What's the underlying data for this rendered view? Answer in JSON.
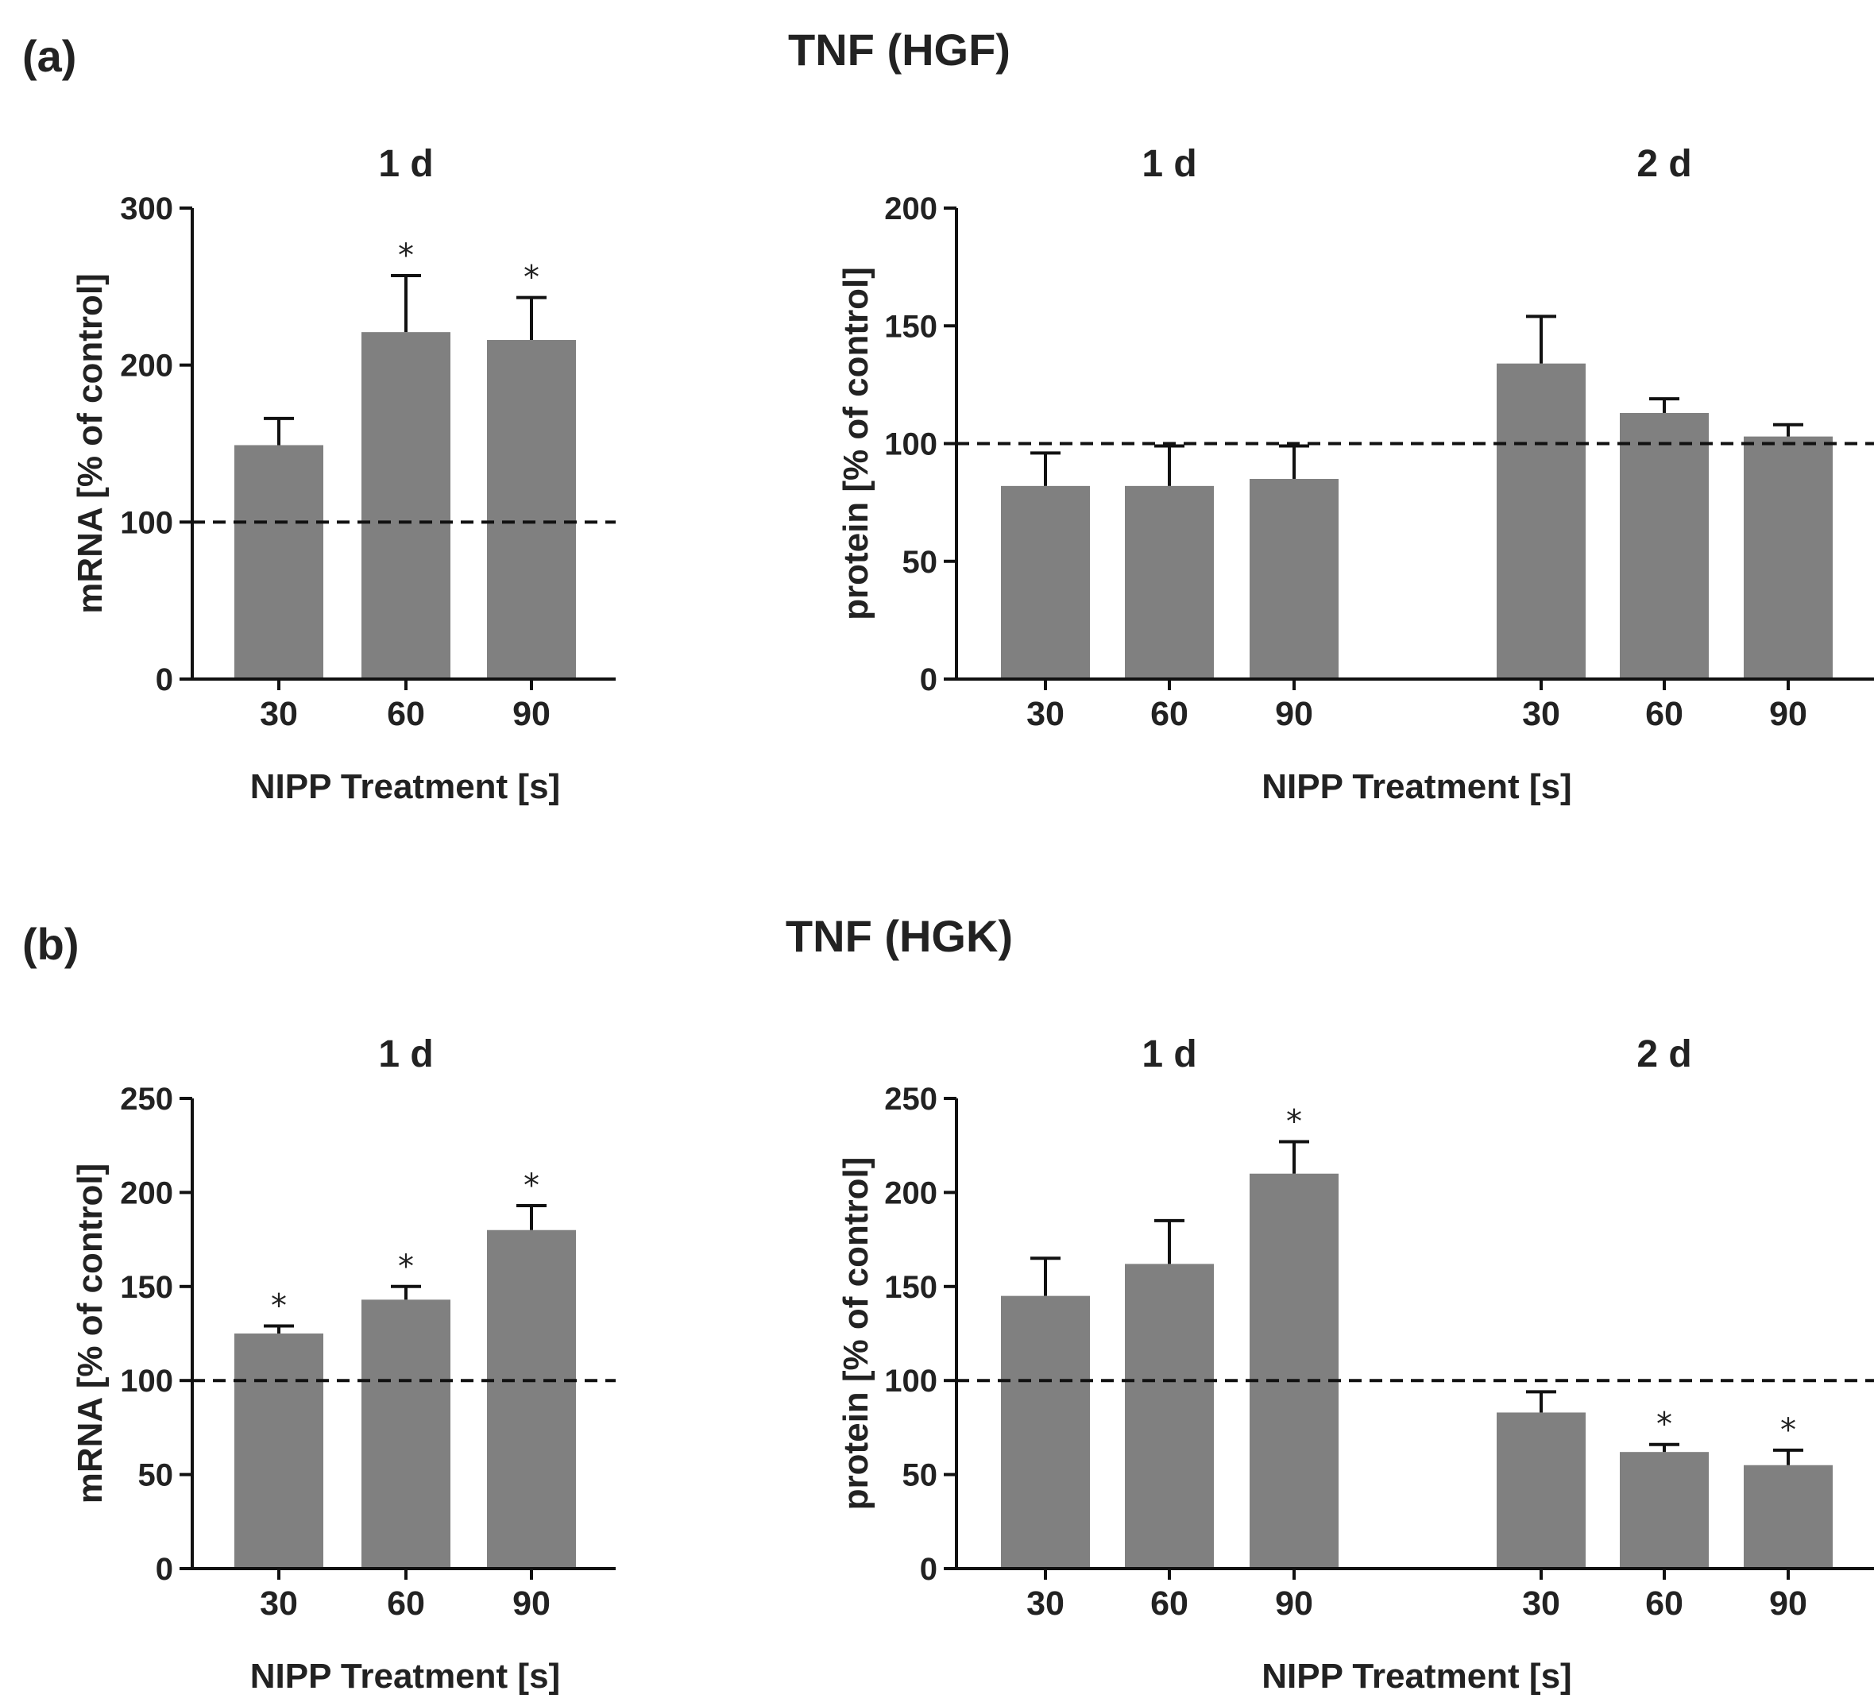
{
  "figure": {
    "panels": [
      {
        "label": "(a)",
        "title": "TNF (HGF)"
      },
      {
        "label": "(b)",
        "title": "TNF (HGK)"
      }
    ],
    "colors": {
      "bar": "#808080",
      "axis": "#111111",
      "text": "#222222"
    }
  },
  "chart_data": [
    {
      "type": "bar",
      "panel": "(a)",
      "subtitle": "1 d",
      "xlabel": "NIPP Treatment [s]",
      "ylabel": "mRNA [% of control]",
      "ylim": [
        0,
        300
      ],
      "yticks": [
        0,
        100,
        200,
        300
      ],
      "reference_line": 100,
      "categories": [
        "30",
        "60",
        "90"
      ],
      "values": [
        149,
        221,
        216
      ],
      "errors": [
        17,
        36,
        27
      ],
      "significant": [
        false,
        true,
        true
      ],
      "significance_marker": "*"
    },
    {
      "type": "bar",
      "panel": "(a)",
      "groups": [
        "1 d",
        "2 d"
      ],
      "xlabel": "NIPP Treatment [s]",
      "ylabel": "protein [% of control]",
      "ylim": [
        0,
        200
      ],
      "yticks": [
        0,
        50,
        100,
        150,
        200
      ],
      "reference_line": 100,
      "categories": [
        "30",
        "60",
        "90",
        "30",
        "60",
        "90"
      ],
      "values": [
        82,
        82,
        85,
        134,
        113,
        103
      ],
      "errors": [
        14,
        17,
        14,
        20,
        6,
        5
      ],
      "significant": [
        false,
        false,
        false,
        false,
        false,
        false
      ],
      "significance_marker": "*"
    },
    {
      "type": "bar",
      "panel": "(b)",
      "subtitle": "1 d",
      "xlabel": "NIPP Treatment [s]",
      "ylabel": "mRNA [% of control]",
      "ylim": [
        0,
        250
      ],
      "yticks": [
        0,
        50,
        100,
        150,
        200,
        250
      ],
      "reference_line": 100,
      "categories": [
        "30",
        "60",
        "90"
      ],
      "values": [
        125,
        143,
        180
      ],
      "errors": [
        4,
        7,
        13
      ],
      "significant": [
        true,
        true,
        true
      ],
      "significance_marker": "*"
    },
    {
      "type": "bar",
      "panel": "(b)",
      "groups": [
        "1 d",
        "2 d"
      ],
      "xlabel": "NIPP Treatment [s]",
      "ylabel": "protein [% of control]",
      "ylim": [
        0,
        250
      ],
      "yticks": [
        0,
        50,
        100,
        150,
        200,
        250
      ],
      "reference_line": 100,
      "categories": [
        "30",
        "60",
        "90",
        "30",
        "60",
        "90"
      ],
      "values": [
        145,
        162,
        210,
        83,
        62,
        55
      ],
      "errors": [
        20,
        23,
        17,
        11,
        4,
        8
      ],
      "significant": [
        false,
        false,
        true,
        false,
        true,
        true
      ],
      "significance_marker": "*"
    }
  ]
}
